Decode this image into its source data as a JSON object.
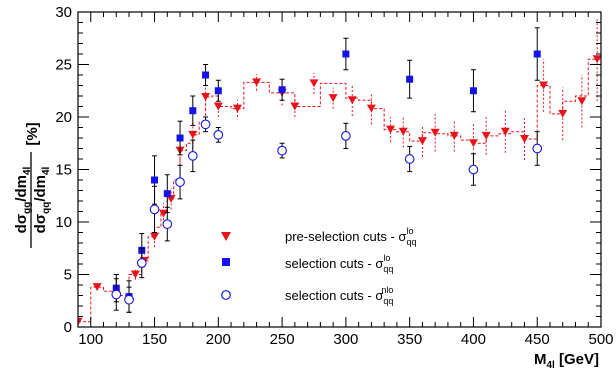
{
  "chart_data": {
    "type": "scatter",
    "xlim": [
      90,
      500
    ],
    "ylim": [
      0,
      30
    ],
    "x_ticks": [
      "100",
      "150",
      "200",
      "250",
      "300",
      "350",
      "400",
      "450",
      "500"
    ],
    "y_ticks": [
      "0",
      "5",
      "10",
      "15",
      "20",
      "25",
      "30"
    ],
    "xlabel": {
      "main": "M",
      "sub": "4l",
      "unit": " [GeV]"
    },
    "ylabel": {
      "num_a": "dσ",
      "num_a_sub": "gg",
      "num_b": "/dm",
      "num_b_sub": "4l",
      "den_a": "dσ",
      "den_a_sub": "qq",
      "den_b": "/dm",
      "den_b_sub": "4l",
      "unit": "[%]"
    },
    "legend_position": "lower-middle",
    "series": [
      {
        "key": "pre",
        "legend": {
          "text": "pre-selection cuts - σ",
          "sub": "qq",
          "sup": "lo"
        },
        "marker": "triangle-down",
        "color": "#e8141a",
        "points": [
          {
            "x": 90,
            "y": 0.5,
            "err": 0.3
          },
          {
            "x": 105,
            "y": 3.8,
            "err": 0.3
          },
          {
            "x": 120,
            "y": 3.0,
            "err": 0.4
          },
          {
            "x": 135,
            "y": 5.0,
            "err": 0.5
          },
          {
            "x": 142,
            "y": 6.3,
            "err": 0.6
          },
          {
            "x": 150,
            "y": 8.6,
            "err": 1.0
          },
          {
            "x": 157,
            "y": 10.8,
            "err": 1.0
          },
          {
            "x": 163,
            "y": 12.2,
            "err": 1.0
          },
          {
            "x": 170,
            "y": 16.8,
            "err": 1.5
          },
          {
            "x": 180,
            "y": 18.3,
            "err": 1.3
          },
          {
            "x": 190,
            "y": 21.9,
            "err": 1.2
          },
          {
            "x": 200,
            "y": 21.0,
            "err": 1.0
          },
          {
            "x": 215,
            "y": 20.8,
            "err": 0.8
          },
          {
            "x": 230,
            "y": 23.3,
            "err": 0.8
          },
          {
            "x": 250,
            "y": 22.3,
            "err": 1.2
          },
          {
            "x": 260,
            "y": 21.0,
            "err": 1.0
          },
          {
            "x": 275,
            "y": 23.2,
            "err": 1.0
          },
          {
            "x": 290,
            "y": 21.8,
            "err": 1.0
          },
          {
            "x": 305,
            "y": 21.6,
            "err": 1.5
          },
          {
            "x": 320,
            "y": 20.8,
            "err": 1.5
          },
          {
            "x": 335,
            "y": 18.8,
            "err": 1.2
          },
          {
            "x": 345,
            "y": 18.6,
            "err": 1.5
          },
          {
            "x": 360,
            "y": 17.7,
            "err": 1.5
          },
          {
            "x": 370,
            "y": 18.5,
            "err": 1.8
          },
          {
            "x": 385,
            "y": 18.2,
            "err": 1.5
          },
          {
            "x": 400,
            "y": 17.5,
            "err": 1.8
          },
          {
            "x": 410,
            "y": 18.2,
            "err": 1.8
          },
          {
            "x": 425,
            "y": 18.6,
            "err": 2.0
          },
          {
            "x": 440,
            "y": 17.9,
            "err": 2.0
          },
          {
            "x": 455,
            "y": 23.0,
            "err": 2.5
          },
          {
            "x": 470,
            "y": 20.3,
            "err": 2.5
          },
          {
            "x": 485,
            "y": 21.5,
            "err": 2.5
          },
          {
            "x": 497,
            "y": 25.5,
            "err": 4.0
          }
        ],
        "hist_edges": [
          90,
          100,
          110,
          120,
          130,
          140,
          145,
          150,
          155,
          160,
          165,
          170,
          175,
          180,
          185,
          190,
          195,
          200,
          210,
          220,
          240,
          260,
          280,
          300,
          310,
          320,
          330,
          340,
          350,
          360,
          370,
          380,
          390,
          400,
          410,
          420,
          430,
          440,
          450,
          460,
          470,
          480,
          490,
          500
        ],
        "hist_values": [
          0.5,
          3.8,
          3.4,
          3.0,
          5.0,
          6.3,
          8.6,
          9.5,
          10.8,
          12.2,
          14.0,
          16.8,
          17.5,
          18.3,
          19.5,
          21.9,
          22.0,
          21.0,
          20.8,
          23.3,
          22.3,
          21.0,
          23.2,
          21.8,
          21.6,
          20.8,
          18.8,
          18.6,
          17.7,
          18.5,
          18.4,
          18.2,
          17.8,
          17.5,
          18.2,
          18.4,
          18.6,
          17.9,
          23.0,
          20.3,
          21.5,
          22.0,
          25.5
        ]
      },
      {
        "key": "sel_lo",
        "legend": {
          "text": "selection cuts - σ",
          "sub": "qq",
          "sup": "lo"
        },
        "marker": "square",
        "color": "#1414e8",
        "points": [
          {
            "x": 120,
            "y": 3.7,
            "err": 1.3
          },
          {
            "x": 130,
            "y": 2.9,
            "err": 1.5
          },
          {
            "x": 140,
            "y": 7.3,
            "err": 1.6
          },
          {
            "x": 150,
            "y": 14.0,
            "err": 2.3
          },
          {
            "x": 160,
            "y": 12.7,
            "err": 1.8
          },
          {
            "x": 170,
            "y": 18.0,
            "err": 1.6
          },
          {
            "x": 180,
            "y": 20.6,
            "err": 1.4
          },
          {
            "x": 190,
            "y": 24.0,
            "err": 1.0
          },
          {
            "x": 200,
            "y": 22.5,
            "err": 1.0
          },
          {
            "x": 250,
            "y": 22.6,
            "err": 1.0
          },
          {
            "x": 300,
            "y": 26.0,
            "err": 1.5
          },
          {
            "x": 350,
            "y": 23.6,
            "err": 1.8
          },
          {
            "x": 400,
            "y": 22.5,
            "err": 2.0
          },
          {
            "x": 450,
            "y": 26.0,
            "err": 2.5
          }
        ]
      },
      {
        "key": "sel_nlo",
        "legend": {
          "text": "selection cuts - σ",
          "sub": "qq",
          "sup": "nlo"
        },
        "marker": "circle-open",
        "color": "#1414e8",
        "points": [
          {
            "x": 120,
            "y": 3.1,
            "err": 1.5
          },
          {
            "x": 130,
            "y": 2.6,
            "err": 1.2
          },
          {
            "x": 140,
            "y": 6.1,
            "err": 1.4
          },
          {
            "x": 150,
            "y": 11.2,
            "err": 2.2
          },
          {
            "x": 160,
            "y": 9.8,
            "err": 1.6
          },
          {
            "x": 170,
            "y": 13.8,
            "err": 1.6
          },
          {
            "x": 180,
            "y": 16.3,
            "err": 1.5
          },
          {
            "x": 190,
            "y": 19.3,
            "err": 0.7
          },
          {
            "x": 200,
            "y": 18.3,
            "err": 0.7
          },
          {
            "x": 250,
            "y": 16.8,
            "err": 0.7
          },
          {
            "x": 300,
            "y": 18.2,
            "err": 1.2
          },
          {
            "x": 350,
            "y": 16.0,
            "err": 1.2
          },
          {
            "x": 400,
            "y": 15.0,
            "err": 1.5
          },
          {
            "x": 450,
            "y": 17.0,
            "err": 1.6
          }
        ]
      }
    ]
  }
}
